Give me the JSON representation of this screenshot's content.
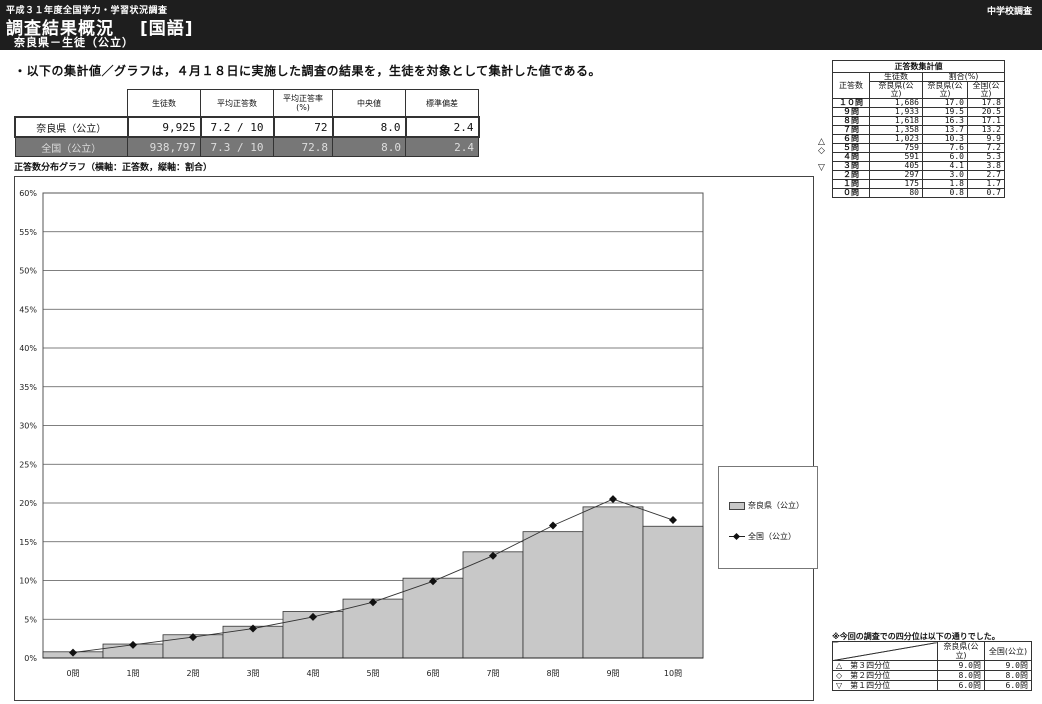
{
  "header": {
    "survey_name": "平成３１年度全国学力・学習状況調査",
    "title": "調査結果概況",
    "subject": "[国語]",
    "subtitle": "奈良県－生徒（公立）",
    "level": "中学校調査"
  },
  "note": "・以下の集計値／グラフは，４月１８日に実施した調査の結果を，生徒を対象として集計した値である。",
  "summary_table": {
    "headers": [
      "生徒数",
      "平均正答数",
      "平均正答率(%)",
      "中央値",
      "標準偏差"
    ],
    "rows": [
      {
        "label": "奈良県（公立）",
        "students": "9,925",
        "avg_correct": "7.2 / 10",
        "avg_rate": "72",
        "median": "8.0",
        "stddev": "2.4"
      },
      {
        "label": "全国（公立）",
        "students": "938,797",
        "avg_correct": "7.3 / 10",
        "avg_rate": "72.8",
        "median": "8.0",
        "stddev": "2.4"
      }
    ]
  },
  "chart_caption": "正答数分布グラフ（横軸：正答数，縦軸：割合）",
  "chart_data": {
    "type": "bar",
    "categories": [
      "0問",
      "1問",
      "2問",
      "3問",
      "4問",
      "5問",
      "6問",
      "7問",
      "8問",
      "9問",
      "10問"
    ],
    "series": [
      {
        "name": "奈良県（公立）",
        "kind": "bar",
        "values": [
          0.8,
          1.8,
          3.0,
          4.1,
          6.0,
          7.6,
          10.3,
          13.7,
          16.3,
          19.5,
          17.0
        ]
      },
      {
        "name": "全国（公立）",
        "kind": "line",
        "values": [
          0.7,
          1.7,
          2.7,
          3.8,
          5.3,
          7.2,
          9.9,
          13.2,
          17.1,
          20.5,
          17.8
        ]
      }
    ],
    "yticks": [
      "0%",
      "5%",
      "10%",
      "15%",
      "20%",
      "25%",
      "30%",
      "35%",
      "40%",
      "45%",
      "50%",
      "55%",
      "60%"
    ],
    "ylim": [
      0,
      60
    ],
    "grid": true,
    "legend_position": "right"
  },
  "legend": {
    "pref": "奈良県（公立）",
    "natl": "全国（公立）"
  },
  "dist_table": {
    "title": "正答数集計値",
    "col_students": "生徒数",
    "col_ratio": "割合(%)",
    "row_header": "正答数",
    "sub_pref": "奈良県(公立)",
    "sub_natl": "全国(公立)",
    "rows": [
      {
        "q": "１０問",
        "students": "1,686",
        "pref": "17.0",
        "natl": "17.8"
      },
      {
        "q": "９問",
        "students": "1,933",
        "pref": "19.5",
        "natl": "20.5"
      },
      {
        "q": "８問",
        "students": "1,618",
        "pref": "16.3",
        "natl": "17.1"
      },
      {
        "q": "７問",
        "students": "1,358",
        "pref": "13.7",
        "natl": "13.2"
      },
      {
        "q": "６問",
        "students": "1,023",
        "pref": "10.3",
        "natl": "9.9"
      },
      {
        "q": "５問",
        "students": "759",
        "pref": "7.6",
        "natl": "7.2"
      },
      {
        "q": "４問",
        "students": "591",
        "pref": "6.0",
        "natl": "5.3"
      },
      {
        "q": "３問",
        "students": "405",
        "pref": "4.1",
        "natl": "3.8"
      },
      {
        "q": "２問",
        "students": "297",
        "pref": "3.0",
        "natl": "2.7"
      },
      {
        "q": "１問",
        "students": "175",
        "pref": "1.8",
        "natl": "1.7"
      },
      {
        "q": "０問",
        "students": "80",
        "pref": "0.8",
        "natl": "0.7"
      }
    ],
    "markers": [
      "",
      "△",
      "◇",
      "",
      "▽",
      "",
      "",
      "",
      "",
      "",
      ""
    ]
  },
  "quartiles": {
    "note": "※今回の調査での四分位は以下の通りでした。",
    "col_pref": "奈良県(公立)",
    "col_natl": "全国(公立)",
    "rows": [
      {
        "mark": "△",
        "label": "第３四分位",
        "pref": "9.0問",
        "natl": "9.0問"
      },
      {
        "mark": "◇",
        "label": "第２四分位",
        "pref": "8.0問",
        "natl": "8.0問"
      },
      {
        "mark": "▽",
        "label": "第１四分位",
        "pref": "6.0問",
        "natl": "6.0問"
      }
    ]
  },
  "colors": {
    "bar_fill": "#c8c8c8",
    "header_bg": "#1e1e1e",
    "national_row_bg": "#777777"
  }
}
